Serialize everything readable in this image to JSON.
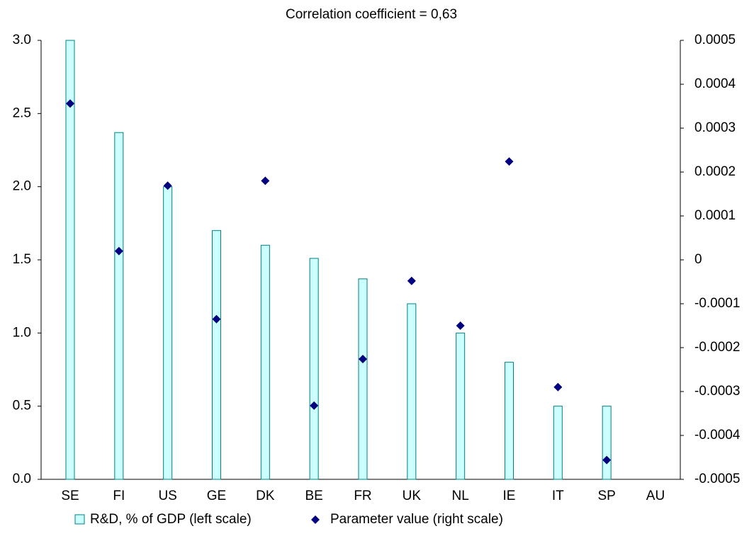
{
  "chart_data": {
    "type": "bar_scatter",
    "title": "Correlation coefficient = 0,63",
    "categories": [
      "SE",
      "FI",
      "US",
      "GE",
      "DK",
      "BE",
      "FR",
      "UK",
      "NL",
      "IE",
      "IT",
      "SP",
      "AU"
    ],
    "series": [
      {
        "name": "R&D, % of GDP (left scale)",
        "type": "bar",
        "color": "#ccffff",
        "edge_color": "#008080",
        "values": [
          3.0,
          2.37,
          2.0,
          1.7,
          1.6,
          1.51,
          1.37,
          1.2,
          1.0,
          0.8,
          0.5,
          0.5,
          null
        ]
      },
      {
        "name": "Parameter value (right scale)",
        "type": "scatter",
        "axis": "y2",
        "color": "#000080",
        "values": [
          0.000356,
          2e-05,
          0.000169,
          -0.000135,
          0.00018,
          -0.000332,
          -0.000226,
          -4.8e-05,
          -0.00015,
          0.000224,
          -0.00029,
          -0.000456,
          null
        ]
      }
    ],
    "ylim": [
      0,
      3
    ],
    "yticks": [
      {
        "value": 0,
        "label": "0.0"
      },
      0.5,
      {
        "value": 1,
        "label": "1.0"
      },
      1.5,
      {
        "value": 2,
        "label": "2.0"
      },
      2.5,
      {
        "value": 3,
        "label": "3.0"
      }
    ],
    "y2lim": [
      -0.0005,
      0.0005
    ],
    "y2ticks": [
      -0.0005,
      -0.0004,
      -0.0003,
      -0.0002,
      -0.0001,
      0,
      0.0001,
      0.0002,
      0.0003,
      0.0004,
      0.0005
    ],
    "grid": false
  }
}
